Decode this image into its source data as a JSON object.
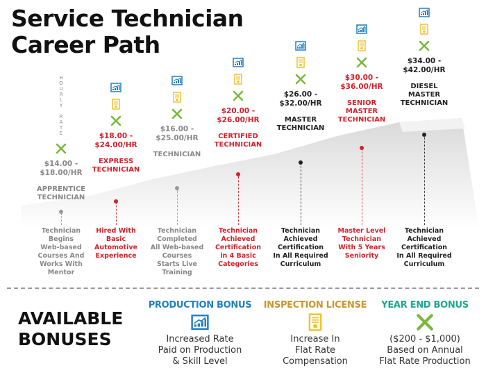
{
  "title": [
    "Service Technician",
    "Career Path"
  ],
  "hourly_rate_label": "HOURLY RATE",
  "colors": {
    "red": "#d71f2a",
    "grey": "#888888",
    "dark": "#222222",
    "blue": "#1e7fc2",
    "gold": "#c9962a",
    "teal": "#1aa88e",
    "green": "#7ab83a"
  },
  "levels": [
    {
      "rate": [
        "$14.00 -",
        "$18.00/HR"
      ],
      "role": [
        "APPRENTICE",
        "TECHNICIAN"
      ],
      "desc": [
        "Technician",
        "Begins",
        "Web-based",
        "Courses And",
        "Works With",
        "Mentor"
      ],
      "tone": "grey"
    },
    {
      "rate": [
        "$18.00 -",
        "$24.00/HR"
      ],
      "role": [
        "EXPRESS",
        "TECHNICIAN"
      ],
      "desc": [
        "Hired With",
        "Basic",
        "Automotive",
        "Experience"
      ],
      "tone": "red"
    },
    {
      "rate": [
        "$16.00 -",
        "$25.00/HR"
      ],
      "role": [
        "TECHNICIAN"
      ],
      "desc": [
        "Technician",
        "Completed",
        "All Web-based",
        "Courses",
        "Starts Live",
        "Training"
      ],
      "tone": "grey"
    },
    {
      "rate": [
        "$20.00 -",
        "$26.00/HR"
      ],
      "role": [
        "CERTIFIED",
        "TECHNICIAN"
      ],
      "desc": [
        "Technician",
        "Achieved",
        "Certification",
        "in 4 Basic",
        "Categories"
      ],
      "tone": "red"
    },
    {
      "rate": [
        "$26.00 -",
        "$32.00/HR"
      ],
      "role": [
        "MASTER",
        "TECHNICIAN"
      ],
      "desc": [
        "Technician",
        "Achieved",
        "Certification",
        "In All Required",
        "Curriculum"
      ],
      "tone": "dark"
    },
    {
      "rate": [
        "$30.00 -",
        "$36.00/HR"
      ],
      "role": [
        "SENIOR",
        "MASTER",
        "TECHNICIAN"
      ],
      "desc": [
        "Master Level",
        "Technician",
        "With 5 Years",
        "Seniority"
      ],
      "tone": "red"
    },
    {
      "rate": [
        "$34.00 -",
        "$42.00/HR"
      ],
      "role": [
        "DIESEL",
        "MASTER",
        "TECHNICIAN"
      ],
      "desc": [
        "Technician",
        "Achieved",
        "Certification",
        "In All Required",
        "Curriculum"
      ],
      "tone": "dark"
    }
  ],
  "bonuses": {
    "heading": [
      "AVAILABLE",
      "BONUSES"
    ],
    "items": [
      {
        "title": "PRODUCTION BONUS",
        "icon": "chart-icon",
        "lines": [
          "Increased Rate",
          "Paid on Production",
          "& Skill Level"
        ]
      },
      {
        "title": "INSPECTION LICENSE",
        "icon": "certificate-icon",
        "lines": [
          "Increase In",
          "Flat Rate",
          "Compensation"
        ]
      },
      {
        "title": "YEAR END BONUS",
        "icon": "tools-icon",
        "lines": [
          "($200 - $1,000)",
          "Based on Annual",
          "Flat Rate Production"
        ]
      }
    ]
  }
}
